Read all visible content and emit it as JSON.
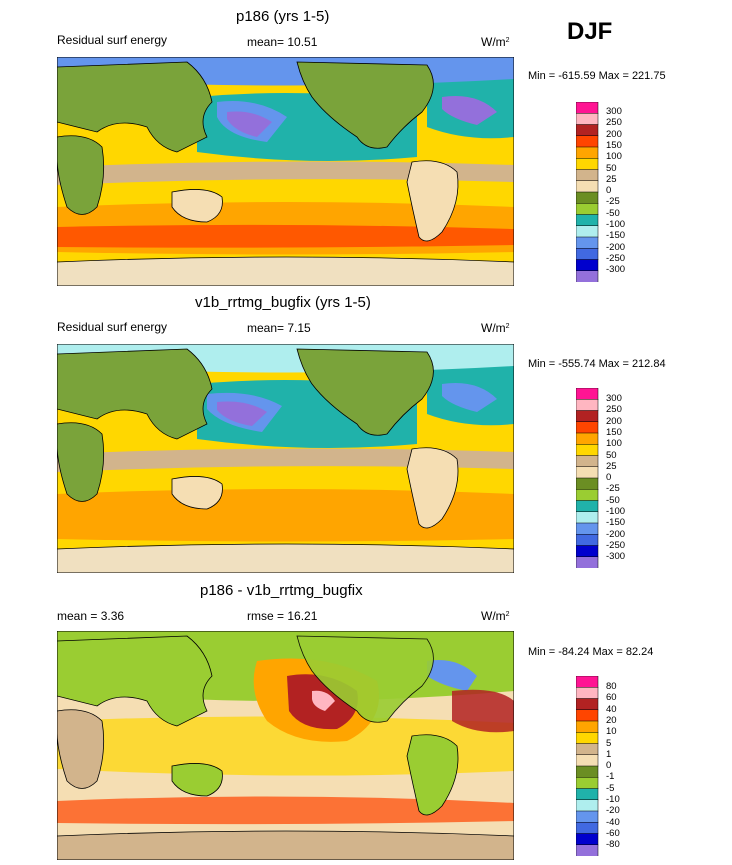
{
  "season": "DJF",
  "units_base": "W/m",
  "units_exp": "2",
  "panels": [
    {
      "title": "p186 (yrs 1-5)",
      "left_label": "Residual surf energy",
      "center_label": "mean=  10.51",
      "minmax": "Min = -615.59 Max = 221.75",
      "levels": [
        "300",
        "250",
        "200",
        "150",
        "100",
        "50",
        "25",
        "0",
        "-25",
        "-50",
        "-100",
        "-150",
        "-200",
        "-250",
        "-300"
      ]
    },
    {
      "title": "v1b_rrtmg_bugfix (yrs 1-5)",
      "left_label": "Residual surf energy",
      "center_label": "mean=   7.15",
      "minmax": "Min = -555.74 Max = 212.84",
      "levels": [
        "300",
        "250",
        "200",
        "150",
        "100",
        "50",
        "25",
        "0",
        "-25",
        "-50",
        "-100",
        "-150",
        "-200",
        "-250",
        "-300"
      ]
    },
    {
      "title": "p186 - v1b_rrtmg_bugfix",
      "left_label": "mean =   3.36",
      "center_label": "rmse =  16.21",
      "minmax": "Min = -84.24 Max =  82.24",
      "levels": [
        "80",
        "60",
        "40",
        "20",
        "10",
        "5",
        "1",
        "0",
        "-1",
        "-5",
        "-10",
        "-20",
        "-40",
        "-60",
        "-80"
      ]
    }
  ],
  "colors": {
    "scale": [
      "#ff1493",
      "#ffb6c1",
      "#b22222",
      "#ff4500",
      "#ffa500",
      "#ffd700",
      "#d2b48c",
      "#f5deb3",
      "#6b8e23",
      "#9acd32",
      "#20b2aa",
      "#afeeee",
      "#6495ed",
      "#4169e1",
      "#0000cd",
      "#9370db"
    ],
    "land": "#7aa33a",
    "ice": "#f0e0c0",
    "coast": "#000000"
  }
}
